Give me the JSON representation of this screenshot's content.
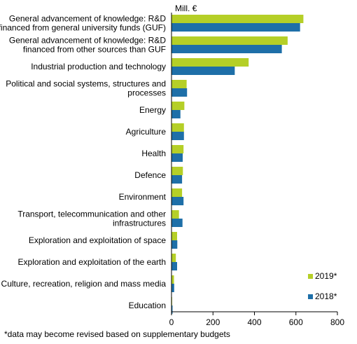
{
  "chart_data": {
    "type": "bar",
    "orientation": "horizontal",
    "unit": "Mill. €",
    "categories": [
      [
        "General advancement of knowledge: R&D",
        "financed from general university funds (GUF)"
      ],
      [
        "General advancement of knowledge: R&D",
        "financed from other sources than GUF"
      ],
      [
        "Industrial production and technology"
      ],
      [
        "Political and social systems, structures and",
        "processes"
      ],
      [
        "Energy"
      ],
      [
        "Agriculture"
      ],
      [
        "Health"
      ],
      [
        "Defence"
      ],
      [
        "Environment"
      ],
      [
        "Transport, telecommunication and other",
        "infrastructures"
      ],
      [
        "Exploration and exploitation of space"
      ],
      [
        "Exploration and exploitation of the earth"
      ],
      [
        "Culture, recreation, religion and mass media"
      ],
      [
        "Education"
      ]
    ],
    "series": [
      {
        "name": "2019*",
        "color": "#b5cf27",
        "values": [
          636,
          560,
          372,
          73,
          62,
          60,
          58,
          55,
          51,
          36,
          27,
          21,
          12,
          3
        ]
      },
      {
        "name": "2018*",
        "color": "#1e6fa8",
        "values": [
          620,
          532,
          305,
          75,
          43,
          60,
          54,
          51,
          58,
          53,
          28,
          27,
          13,
          5
        ]
      }
    ],
    "xlim": [
      0,
      800
    ],
    "xticks": [
      0,
      200,
      400,
      600,
      800
    ],
    "grid": false,
    "legend_position": "bottom-right"
  },
  "footnote": "*data may become revised based on supplementary budgets"
}
